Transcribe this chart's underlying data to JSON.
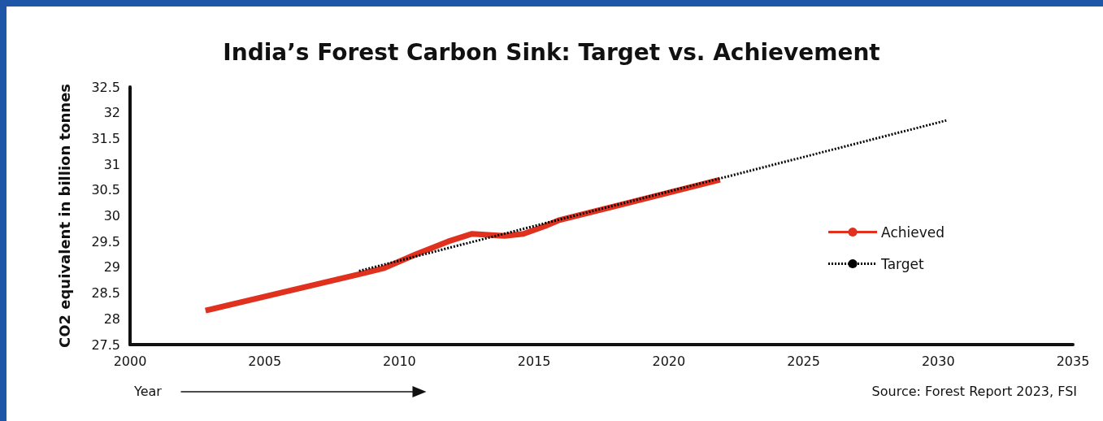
{
  "chart_data": {
    "type": "line",
    "title": "India’s Forest Carbon Sink: Target vs. Achievement",
    "xlabel": "Year",
    "ylabel": "CO2 equivalent in billion tonnes",
    "annotations": [
      "Source: Forest Report 2023, FSI"
    ],
    "xlim": [
      2000,
      2035
    ],
    "xticks": [
      2000,
      2005,
      2010,
      2015,
      2020,
      2025,
      2030,
      2035
    ],
    "ylim": [
      27.5,
      32.5
    ],
    "yticks": [
      27.5,
      28,
      28.5,
      29,
      29.5,
      30,
      30.5,
      31,
      31.5,
      32,
      32.5
    ],
    "series": [
      {
        "name": "Target",
        "color": "#000000",
        "line_style": "dotted",
        "x": [
          2008.5,
          2030.3
        ],
        "values": [
          28.93,
          31.85
        ]
      },
      {
        "name": "Achieved",
        "color": "#e0301e",
        "line_style": "solid",
        "x": [
          2002.8,
          2008.7,
          2009.4,
          2010.6,
          2011.8,
          2012.7,
          2013.9,
          2014.6,
          2015.4,
          2015.9,
          2021.9
        ],
        "values": [
          28.16,
          28.89,
          28.98,
          29.25,
          29.5,
          29.65,
          29.61,
          29.65,
          29.8,
          29.91,
          30.7
        ]
      }
    ],
    "legend": "right",
    "grid": false,
    "marker": "none"
  }
}
